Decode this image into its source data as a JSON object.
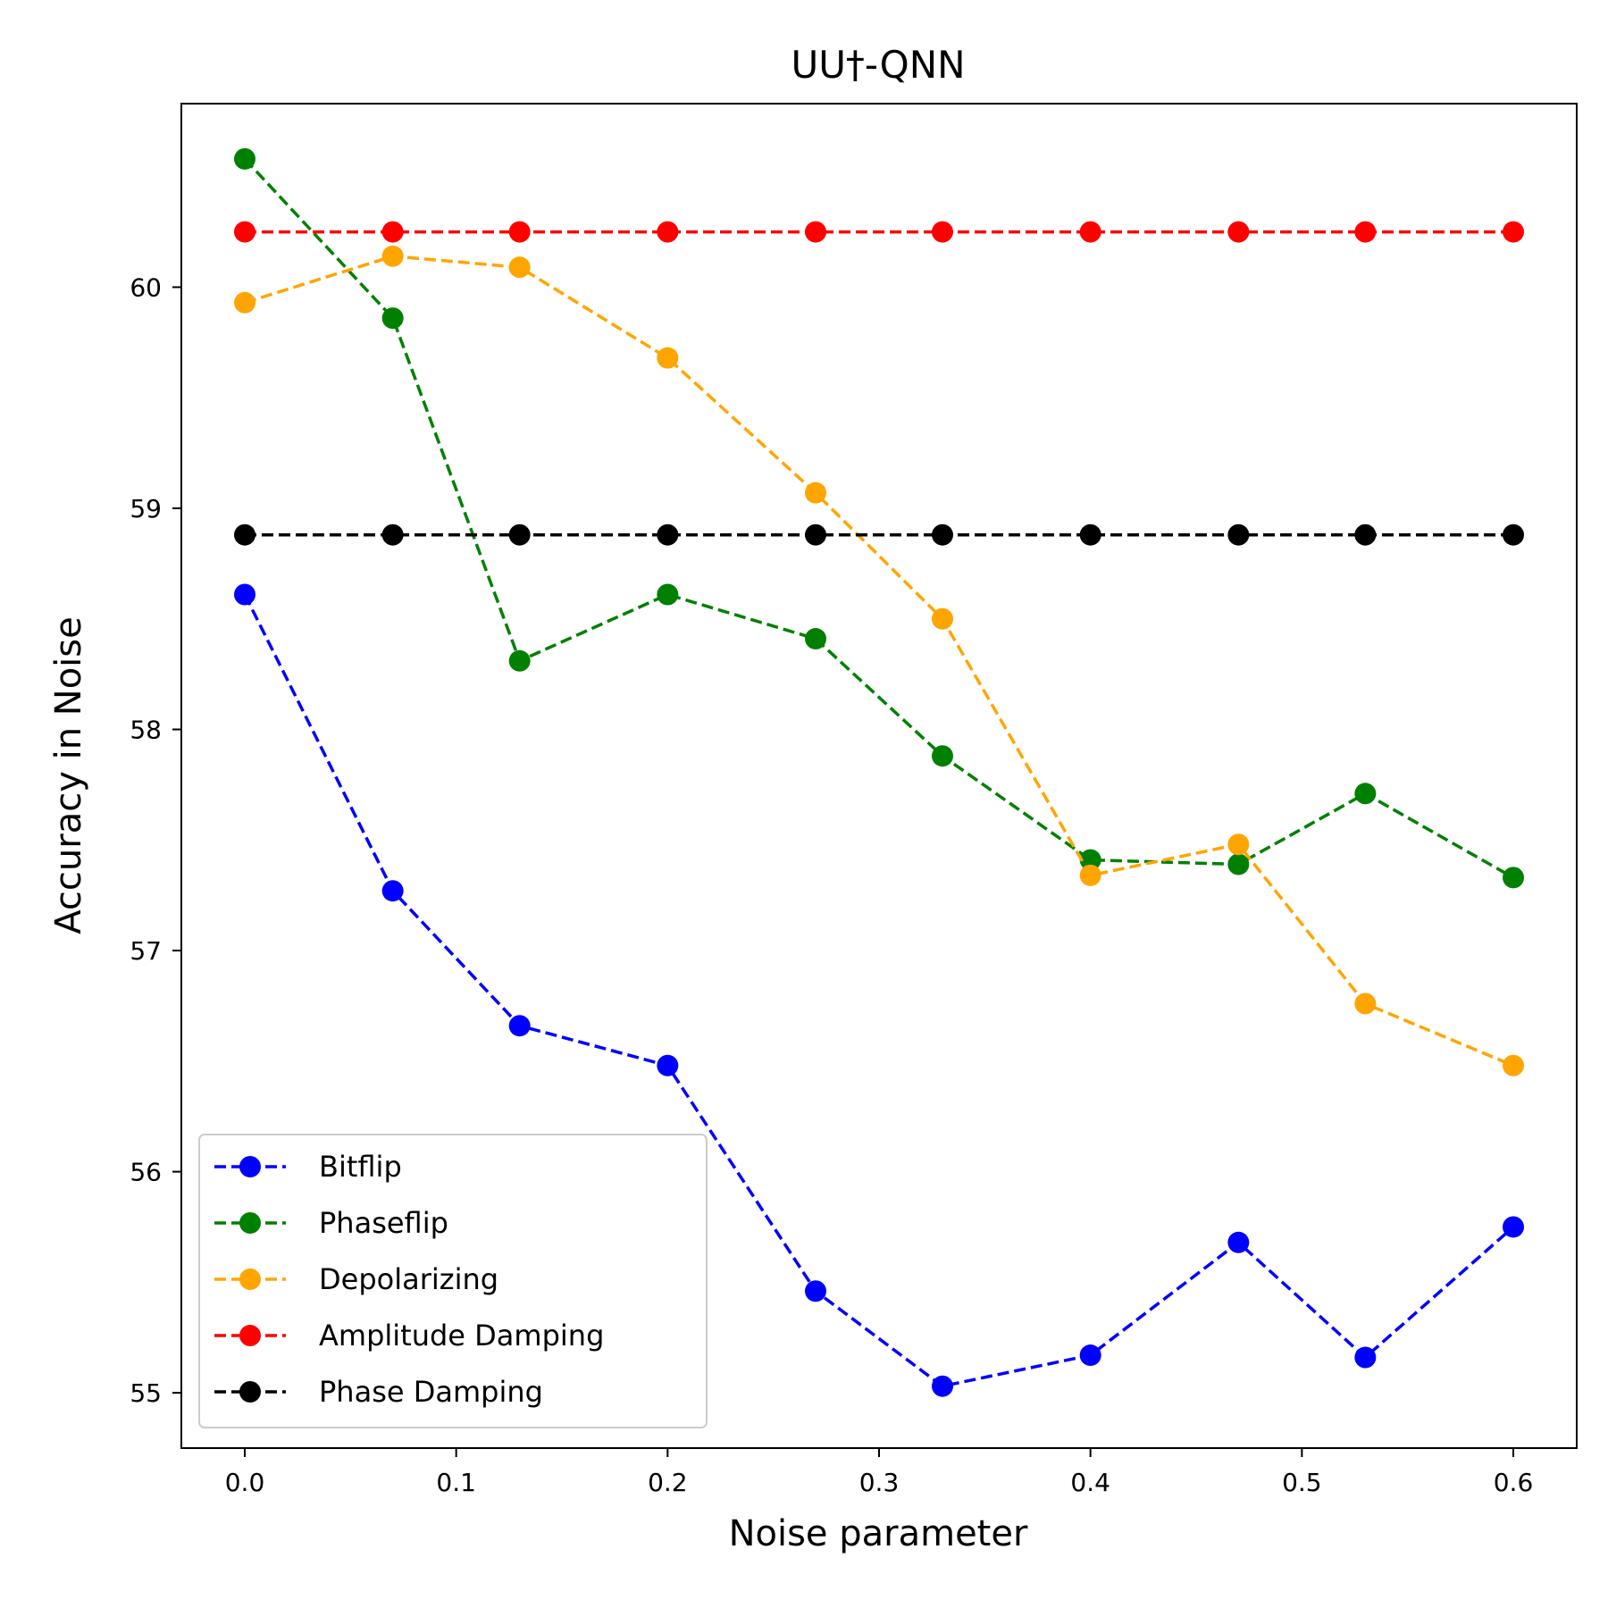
{
  "chart_data": {
    "type": "line",
    "title": "UU†-QNN",
    "xlabel": "Noise parameter",
    "ylabel": "Accuracy in Noise",
    "xlim": [
      -0.03,
      0.63
    ],
    "ylim": [
      54.75,
      60.83
    ],
    "x_ticks": [
      0.0,
      0.1,
      0.2,
      0.3,
      0.4,
      0.5,
      0.6
    ],
    "x_tick_labels": [
      "0.0",
      "0.1",
      "0.2",
      "0.3",
      "0.4",
      "0.5",
      "0.6"
    ],
    "y_ticks": [
      55,
      56,
      57,
      58,
      59,
      60
    ],
    "y_tick_labels": [
      "55",
      "56",
      "57",
      "58",
      "59",
      "60"
    ],
    "grid": false,
    "legend_position": "lower-left",
    "x": [
      0.0,
      0.07,
      0.13,
      0.2,
      0.27,
      0.33,
      0.4,
      0.47,
      0.53,
      0.6
    ],
    "series": [
      {
        "name": "Bitflip",
        "color": "#0000ff",
        "values": [
          58.61,
          57.27,
          56.66,
          56.48,
          55.46,
          55.03,
          55.17,
          55.68,
          55.16,
          55.75
        ]
      },
      {
        "name": "Phaseflip",
        "color": "#008000",
        "values": [
          60.58,
          59.86,
          58.31,
          58.61,
          58.41,
          57.88,
          57.41,
          57.39,
          57.71,
          57.33
        ]
      },
      {
        "name": "Depolarizing",
        "color": "#ffa500",
        "values": [
          59.93,
          60.14,
          60.09,
          59.68,
          59.07,
          58.5,
          57.34,
          57.48,
          56.76,
          56.48
        ]
      },
      {
        "name": "Amplitude Damping",
        "color": "#ff0000",
        "values": [
          60.25,
          60.25,
          60.25,
          60.25,
          60.25,
          60.25,
          60.25,
          60.25,
          60.25,
          60.25
        ]
      },
      {
        "name": "Phase Damping",
        "color": "#000000",
        "values": [
          58.88,
          58.88,
          58.88,
          58.88,
          58.88,
          58.88,
          58.88,
          58.88,
          58.88,
          58.88
        ]
      }
    ]
  }
}
